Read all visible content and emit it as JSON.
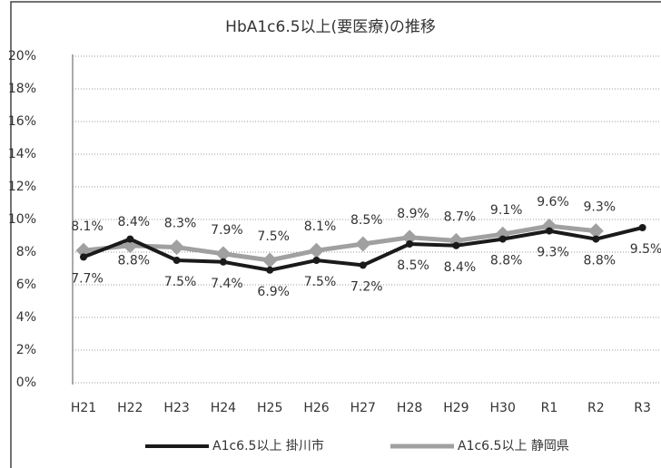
{
  "chart_data": {
    "type": "line",
    "title": "HbA1c6.5以上(要医療)の推移",
    "categories": [
      "H21",
      "H22",
      "H23",
      "H24",
      "H25",
      "H26",
      "H27",
      "H28",
      "H29",
      "H30",
      "R1",
      "R2",
      "R3"
    ],
    "series": [
      {
        "name": "A1c6.5以上 掛川市",
        "color": "#1a1a1a",
        "values": [
          7.7,
          8.8,
          7.5,
          7.4,
          6.9,
          7.5,
          7.2,
          8.5,
          8.4,
          8.8,
          9.3,
          8.8,
          9.5
        ],
        "value_labels": [
          "7.7%",
          "8.8%",
          "7.5%",
          "7.4%",
          "6.9%",
          "7.5%",
          "7.2%",
          "8.5%",
          "8.4%",
          "8.8%",
          "9.3%",
          "8.8%",
          "9.5%"
        ]
      },
      {
        "name": "A1c6.5以上 静岡県",
        "color": "#a0a0a0",
        "values": [
          8.1,
          8.4,
          8.3,
          7.9,
          7.5,
          8.1,
          8.5,
          8.9,
          8.7,
          9.1,
          9.6,
          9.3,
          null
        ],
        "value_labels": [
          "8.1%",
          "8.4%",
          "8.3%",
          "7.9%",
          "7.5%",
          "8.1%",
          "8.5%",
          "8.9%",
          "8.7%",
          "9.1%",
          "9.6%",
          "9.3%",
          null
        ]
      }
    ],
    "ylim": [
      0,
      20
    ],
    "yticks": [
      {
        "value": 0,
        "label": "0%"
      },
      {
        "value": 2,
        "label": "2%"
      },
      {
        "value": 4,
        "label": "4%"
      },
      {
        "value": 6,
        "label": "6%"
      },
      {
        "value": 8,
        "label": "8%"
      },
      {
        "value": 10,
        "label": "10%"
      },
      {
        "value": 12,
        "label": "12%"
      },
      {
        "value": 14,
        "label": "14%"
      },
      {
        "value": 16,
        "label": "16%"
      },
      {
        "value": 18,
        "label": "18%"
      },
      {
        "value": 20,
        "label": "20%"
      }
    ],
    "grid": true,
    "legend": "bottom"
  }
}
